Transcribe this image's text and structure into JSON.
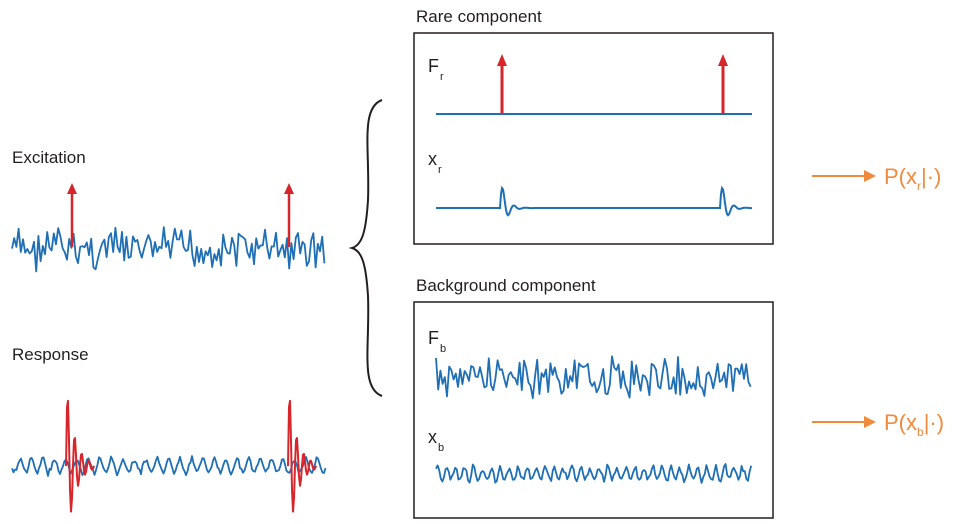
{
  "left": {
    "excitation_label": "Excitation",
    "response_label": "Response"
  },
  "panels": {
    "rare": {
      "title": "Rare component",
      "force_symbol": "F",
      "force_sub": "r",
      "disp_symbol": "x",
      "disp_sub": "r"
    },
    "background": {
      "title": "Background component",
      "force_symbol": "F",
      "force_sub": "b",
      "disp_symbol": "x",
      "disp_sub": "b"
    }
  },
  "outputs": {
    "rare": {
      "prefix": "P(x",
      "sub": "r",
      "suffix": "|·)"
    },
    "background": {
      "prefix": "P(x",
      "sub": "b",
      "suffix": "|·)"
    }
  },
  "colors": {
    "signal": "#1f6fb5",
    "spike": "#d7262b",
    "output": "#f08a3c",
    "frame": "#231f20"
  },
  "icons": {
    "rare_arrow": "right-arrow-icon",
    "background_arrow": "right-arrow-icon",
    "brace": "curly-brace-icon"
  }
}
